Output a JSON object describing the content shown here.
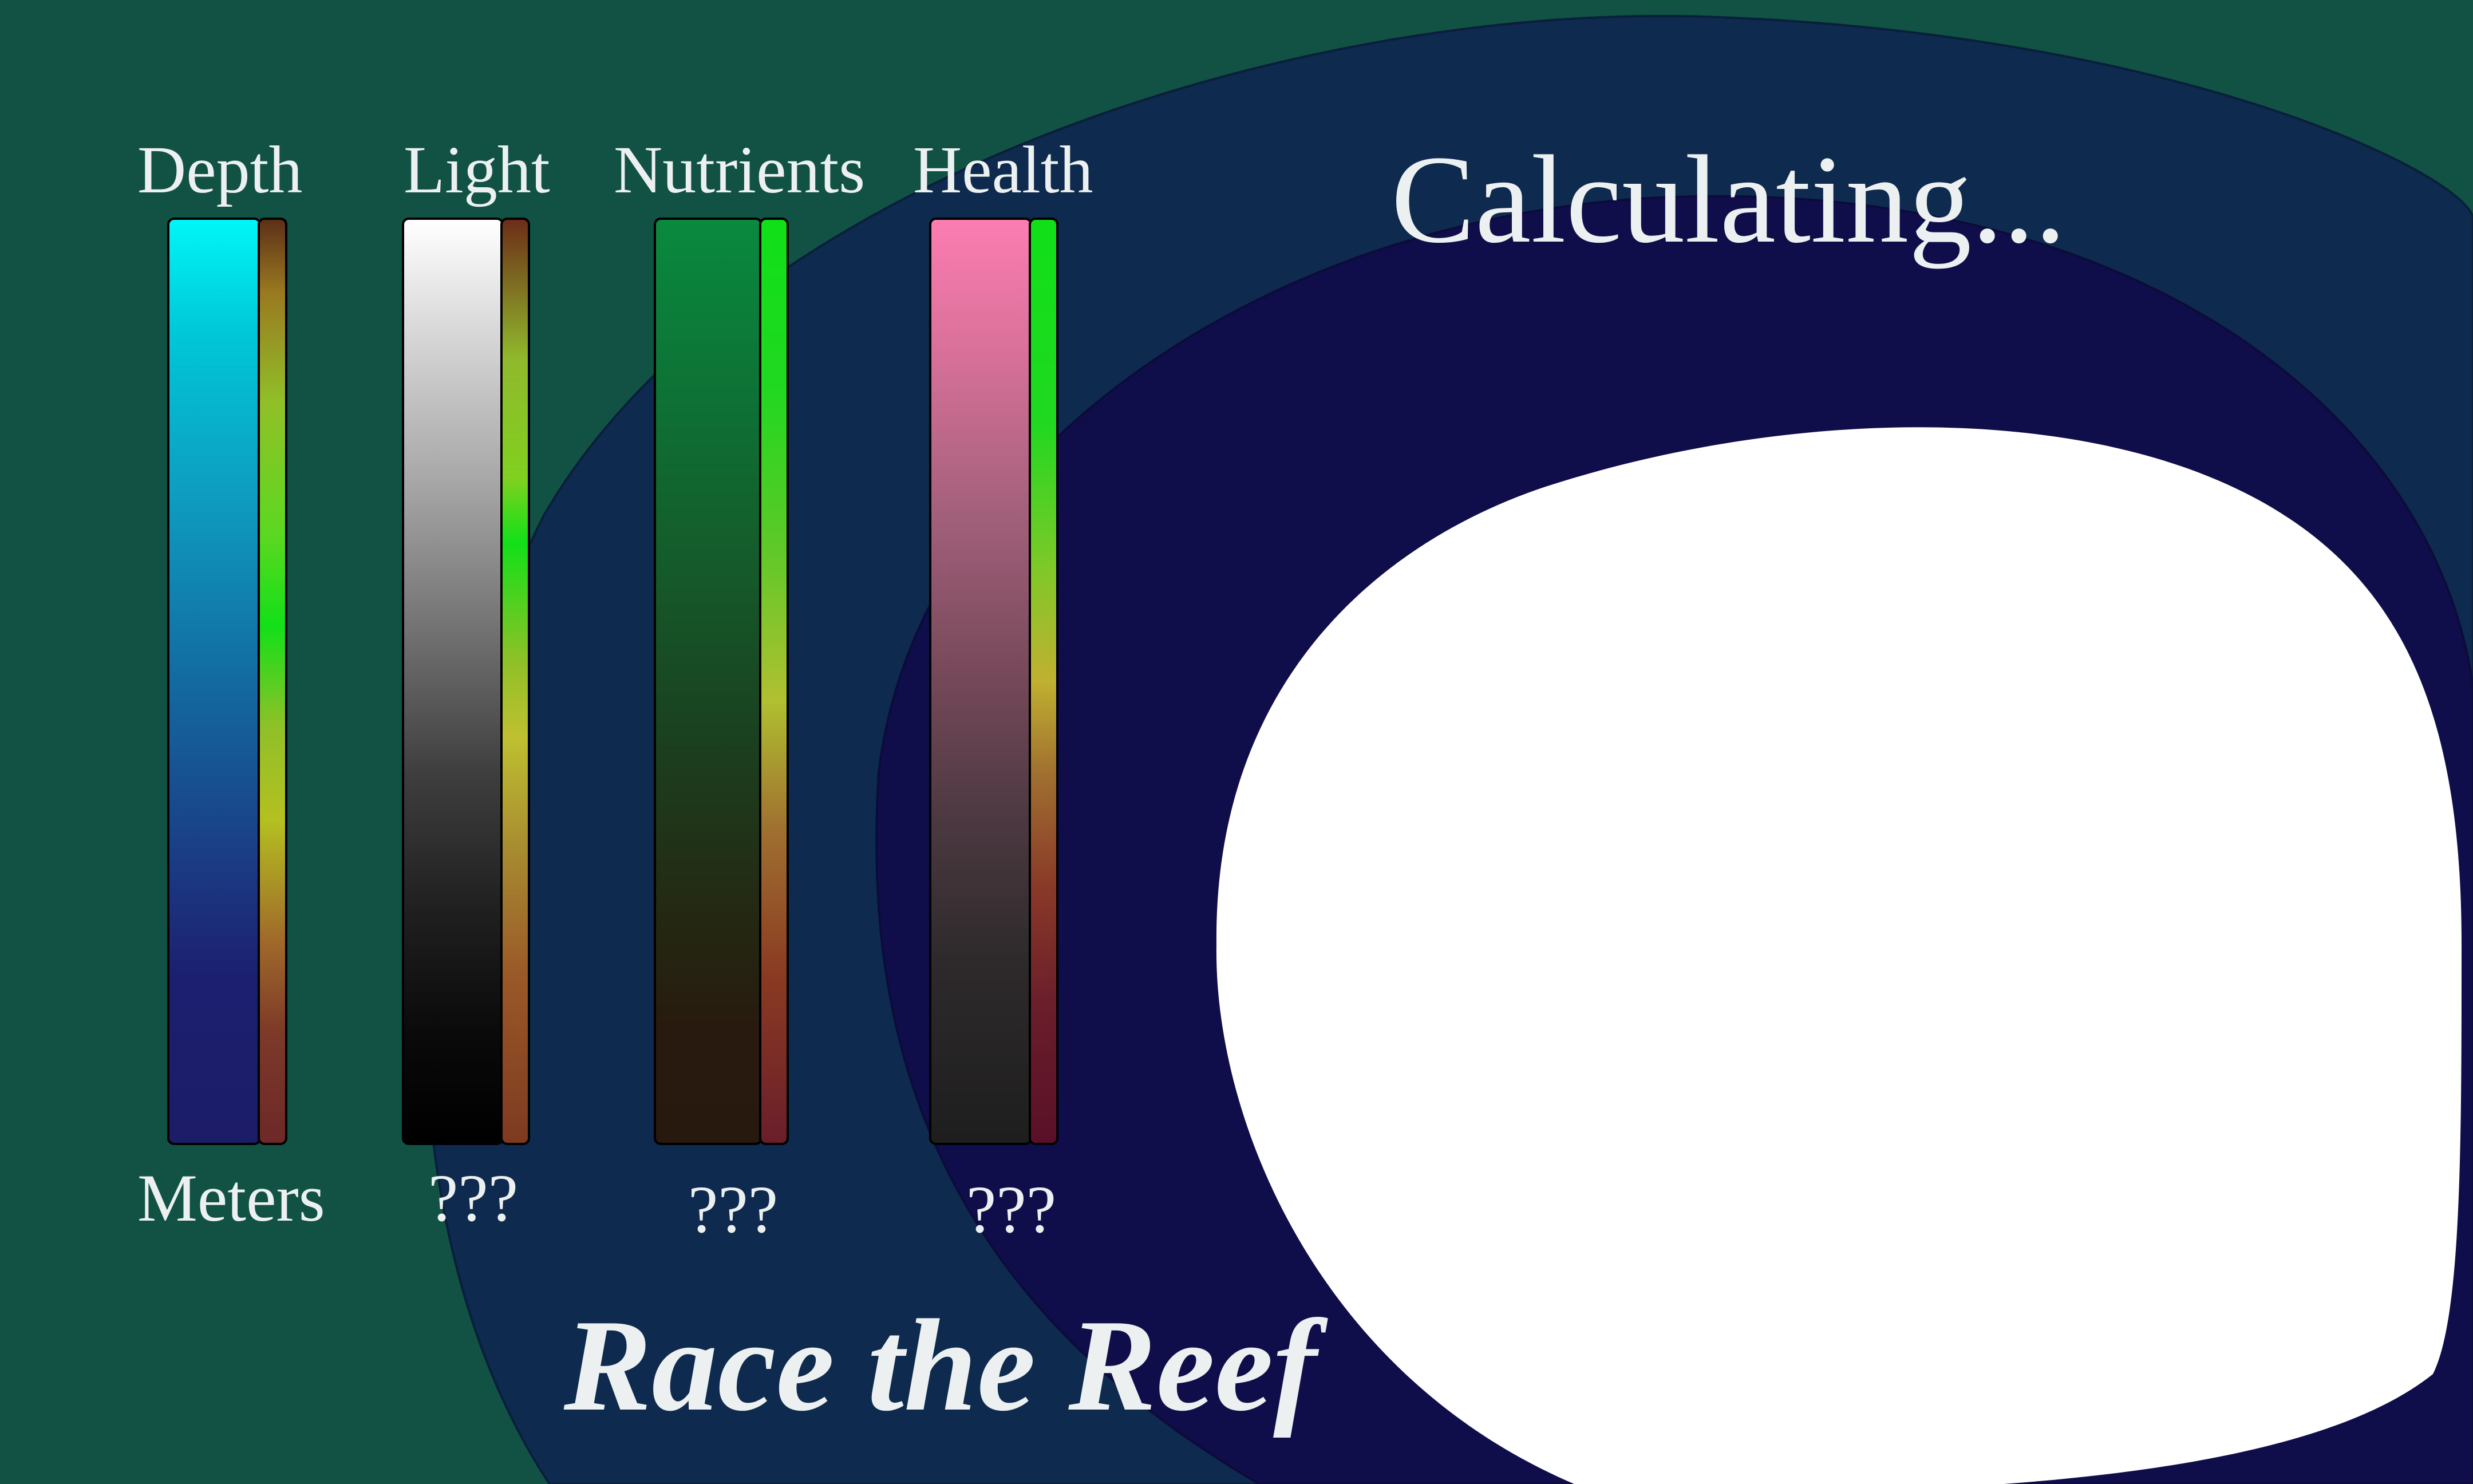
{
  "title": "Race the Reef",
  "status": "Calculating...",
  "gauges": [
    {
      "label": "Depth",
      "unit": "Meters"
    },
    {
      "label": "Light",
      "unit": "???"
    },
    {
      "label": "Nutrients",
      "unit": "???"
    },
    {
      "label": "Health",
      "unit": "???"
    }
  ],
  "colors": {
    "background": "#115245",
    "outer_ring": "#0e2a4e",
    "inner_ring": "#100e4a",
    "view": "#ffffff",
    "text": "#ecf0f1"
  }
}
